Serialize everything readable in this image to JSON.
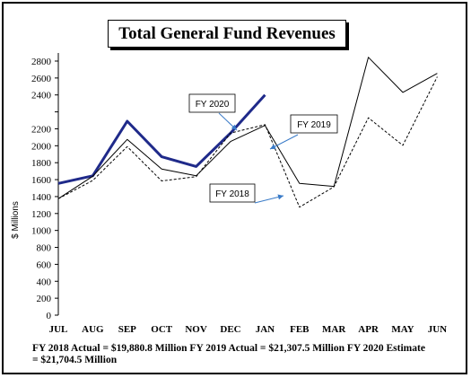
{
  "chart_data": {
    "type": "line",
    "title": "Total General Fund Revenues",
    "ylabel": "$ Millions",
    "categories": [
      "JUL",
      "AUG",
      "SEP",
      "OCT",
      "NOV",
      "DEC",
      "JAN",
      "FEB",
      "MAR",
      "APR",
      "MAY",
      "JUN"
    ],
    "y_ticks": [
      "0",
      "200",
      "400",
      "600",
      "800",
      "1000",
      "1200",
      "1400",
      "1600",
      "1800",
      "2000",
      "2200",
      "",
      "2400",
      "2600",
      "2800"
    ],
    "ylim": [
      0,
      3000
    ],
    "series": [
      {
        "name": "FY 2020",
        "color": "#1f2a8a",
        "style": "solid-thick",
        "values": [
          1555,
          1645,
          2245,
          1870,
          1755,
          2150,
          2400,
          null,
          null,
          null,
          null,
          null
        ]
      },
      {
        "name": "FY 2019",
        "color": "#000000",
        "style": "solid",
        "values": [
          1375,
          1640,
          2075,
          1725,
          1645,
          2050,
          2220,
          1555,
          1520,
          2845,
          2430,
          2655
        ]
      },
      {
        "name": "FY 2018",
        "color": "#000000",
        "style": "dashed",
        "values": [
          1375,
          1590,
          1990,
          1585,
          1635,
          2150,
          2225,
          1275,
          1515,
          2265,
          2005,
          2615
        ]
      }
    ],
    "annotations": [
      {
        "text": "FY 2020",
        "series": "FY 2020"
      },
      {
        "text": "FY 2019",
        "series": "FY 2019"
      },
      {
        "text": "FY 2018",
        "series": "FY 2018"
      }
    ],
    "grid": false
  },
  "footnote": "FY 2018 Actual = $19,880.8 Million FY 2019 Actual = $21,307.5 Million FY 2020 Estimate = $21,704.5 Million"
}
